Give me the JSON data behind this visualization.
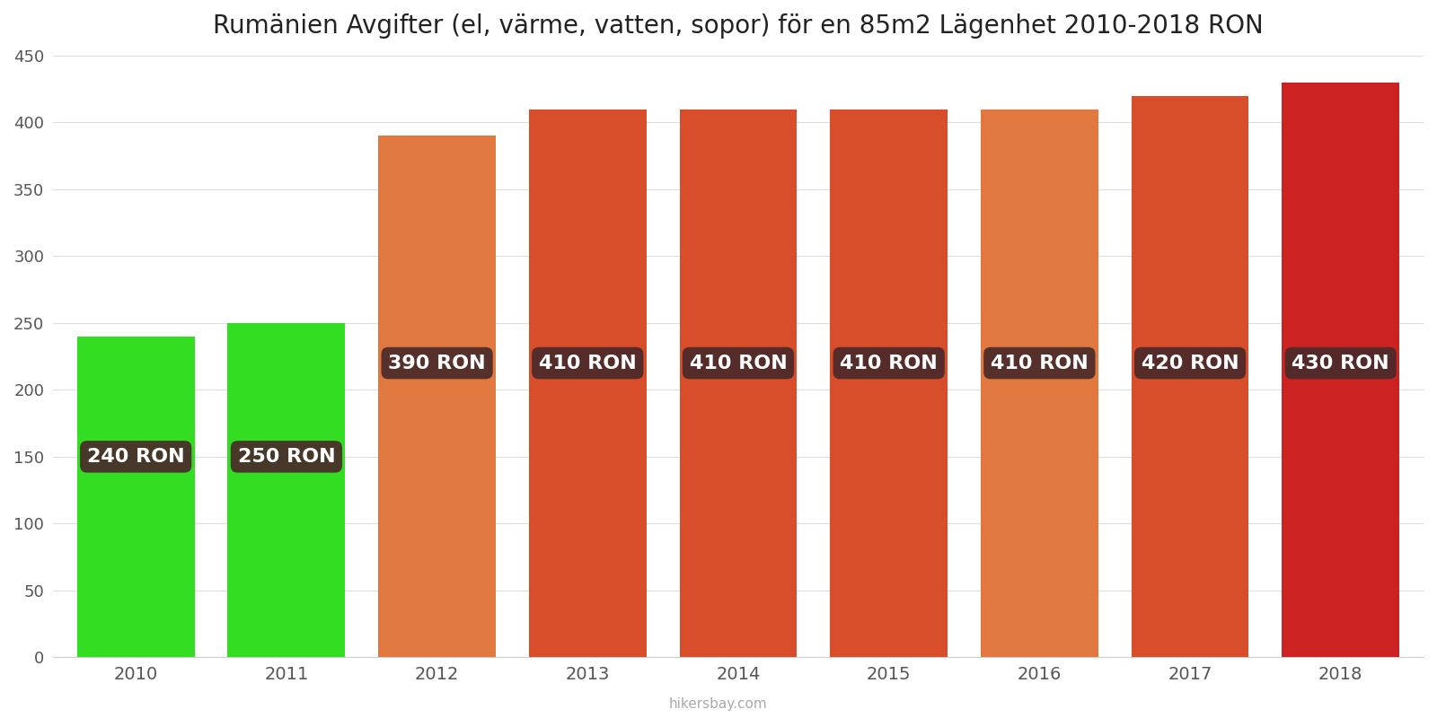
{
  "years": [
    2010,
    2011,
    2012,
    2013,
    2014,
    2015,
    2016,
    2017,
    2018
  ],
  "values": [
    240,
    250,
    390,
    410,
    410,
    410,
    410,
    420,
    430
  ],
  "bar_colors": [
    "#33dd22",
    "#33dd22",
    "#e07840",
    "#d94e2a",
    "#d94e2a",
    "#d94e2a",
    "#e07840",
    "#d94e2a",
    "#cc2222"
  ],
  "labels": [
    "240 RON",
    "250 RON",
    "390 RON",
    "410 RON",
    "410 RON",
    "410 RON",
    "410 RON",
    "420 RON",
    "430 RON"
  ],
  "label_y_positions": [
    150,
    150,
    220,
    220,
    220,
    220,
    220,
    220,
    220
  ],
  "title": "Rumänien Avgifter (el, värme, vatten, sopor) för en 85m2 Lägenhet 2010-2018 RON",
  "ylim": [
    0,
    450
  ],
  "yticks": [
    0,
    50,
    100,
    150,
    200,
    250,
    300,
    350,
    400,
    450
  ],
  "background_color": "#ffffff",
  "label_box_color": "#4a2a2a",
  "label_text_color": "#ffffff",
  "watermark": "hikersbay.com",
  "title_fontsize": 20,
  "label_fontsize": 16,
  "bar_width": 0.78,
  "xlim_left": 2009.45,
  "xlim_right": 2018.55
}
